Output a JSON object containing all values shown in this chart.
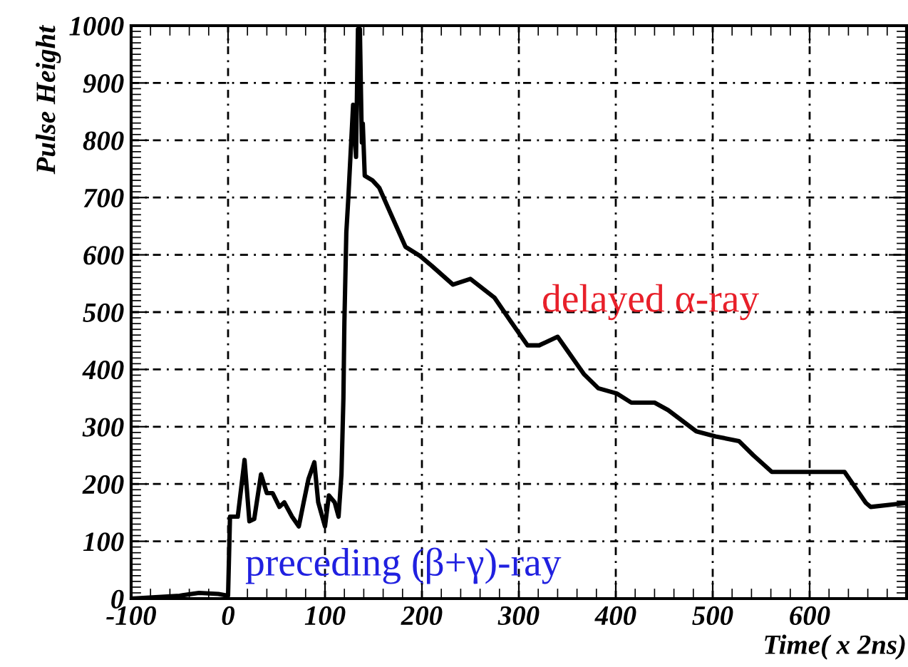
{
  "chart_data": {
    "type": "line",
    "xlabel": "Time( x 2ns)",
    "ylabel": "Pulse Height",
    "annotations": [
      "delayed α-ray",
      "preceding (β+γ)-ray"
    ],
    "series": [
      {
        "color": "#000000",
        "x": [
          -100,
          -50,
          -30,
          -10,
          0,
          2,
          10,
          17,
          22,
          27,
          34,
          40,
          46,
          53,
          58,
          66,
          73,
          78,
          83,
          89,
          93,
          100,
          104,
          110,
          114,
          117,
          119,
          120,
          122,
          124,
          127,
          129,
          132,
          134,
          136,
          138,
          139,
          141,
          149,
          156,
          168,
          183,
          198,
          210,
          232,
          250,
          275,
          292,
          309,
          321,
          340,
          350,
          367,
          382,
          401,
          416,
          440,
          454,
          483,
          503,
          527,
          542,
          561,
          595,
          636,
          658,
          663,
          700
        ],
        "values": [
          0,
          5,
          10,
          8,
          5,
          143,
          143,
          242,
          135,
          139,
          217,
          184,
          184,
          160,
          168,
          143,
          126,
          168,
          209,
          238,
          168,
          126,
          180,
          168,
          143,
          217,
          350,
          482,
          639,
          697,
          796,
          862,
          771,
          994,
          994,
          796,
          829,
          738,
          730,
          717,
          671,
          614,
          598,
          581,
          548,
          558,
          525,
          483,
          442,
          442,
          457,
          433,
          392,
          367,
          358,
          342,
          342,
          329,
          292,
          283,
          275,
          250,
          221,
          221,
          221,
          167,
          160,
          167
        ]
      }
    ],
    "xlim": [
      -100,
      700
    ],
    "ylim": [
      0,
      1000
    ],
    "xticks": [
      -100,
      0,
      100,
      200,
      300,
      400,
      500,
      600
    ],
    "yticks": [
      0,
      100,
      200,
      300,
      400,
      500,
      600,
      700,
      800,
      900,
      1000
    ],
    "grid": true,
    "legend": false,
    "marker": "none",
    "line_style": "solid"
  }
}
